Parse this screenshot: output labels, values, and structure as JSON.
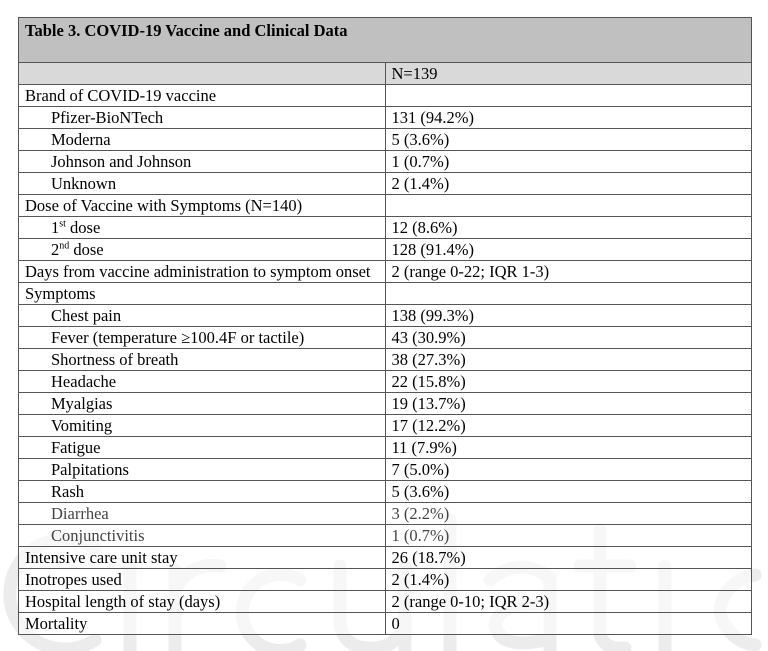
{
  "watermark": "Circulation",
  "table": {
    "title": "Table 3. COVID-19 Vaccine and Clinical Data",
    "n_header": "N=139",
    "rows": [
      {
        "label": "Brand of COVID-19 vaccine",
        "value": "",
        "indent": false
      },
      {
        "label": "Pfizer-BioNTech",
        "value": "131 (94.2%)",
        "indent": true
      },
      {
        "label": "Moderna",
        "value": "5 (3.6%)",
        "indent": true
      },
      {
        "label": "Johnson and Johnson",
        "value": "1 (0.7%)",
        "indent": true
      },
      {
        "label": "Unknown",
        "value": "2 (1.4%)",
        "indent": true
      },
      {
        "label": "Dose of Vaccine with Symptoms (N=140)",
        "value": "",
        "indent": false
      },
      {
        "label": "1",
        "sup": "st",
        "suffix": " dose",
        "value": "12 (8.6%)",
        "indent": true
      },
      {
        "label": "2",
        "sup": "nd",
        "suffix": " dose",
        "value": "128 (91.4%)",
        "indent": true
      },
      {
        "label": "Days from vaccine administration to symptom onset",
        "value": "2 (range 0-22; IQR 1-3)",
        "indent": false
      },
      {
        "label": "Symptoms",
        "value": "",
        "indent": false
      },
      {
        "label": "Chest pain",
        "value": "138 (99.3%)",
        "indent": true
      },
      {
        "label": "Fever (temperature ≥100.4F or tactile)",
        "value": "43 (30.9%)",
        "indent": true
      },
      {
        "label": "Shortness of breath",
        "value": "38 (27.3%)",
        "indent": true
      },
      {
        "label": "Headache",
        "value": "22 (15.8%)",
        "indent": true
      },
      {
        "label": "Myalgias",
        "value": "19 (13.7%)",
        "indent": true
      },
      {
        "label": "Vomiting",
        "value": "17 (12.2%)",
        "indent": true
      },
      {
        "label": "Fatigue",
        "value": "11 (7.9%)",
        "indent": true
      },
      {
        "label": "Palpitations",
        "value": "7 (5.0%)",
        "indent": true
      },
      {
        "label": "Rash",
        "value": "5 (3.6%)",
        "indent": true
      },
      {
        "label": "Diarrhea",
        "value": "3 (2.2%)",
        "indent": true,
        "muted": true
      },
      {
        "label": "Conjunctivitis",
        "value": "1 (0.7%)",
        "indent": true,
        "muted": true
      },
      {
        "label": "Intensive care unit stay",
        "value": "26 (18.7%)",
        "indent": false
      },
      {
        "label": "Inotropes used",
        "value": "2 (1.4%)",
        "indent": false
      },
      {
        "label": "Hospital length of stay (days)",
        "value": "2 (range 0-10; IQR 2-3)",
        "indent": false
      },
      {
        "label": "Mortality",
        "value": "0",
        "indent": false
      }
    ]
  }
}
